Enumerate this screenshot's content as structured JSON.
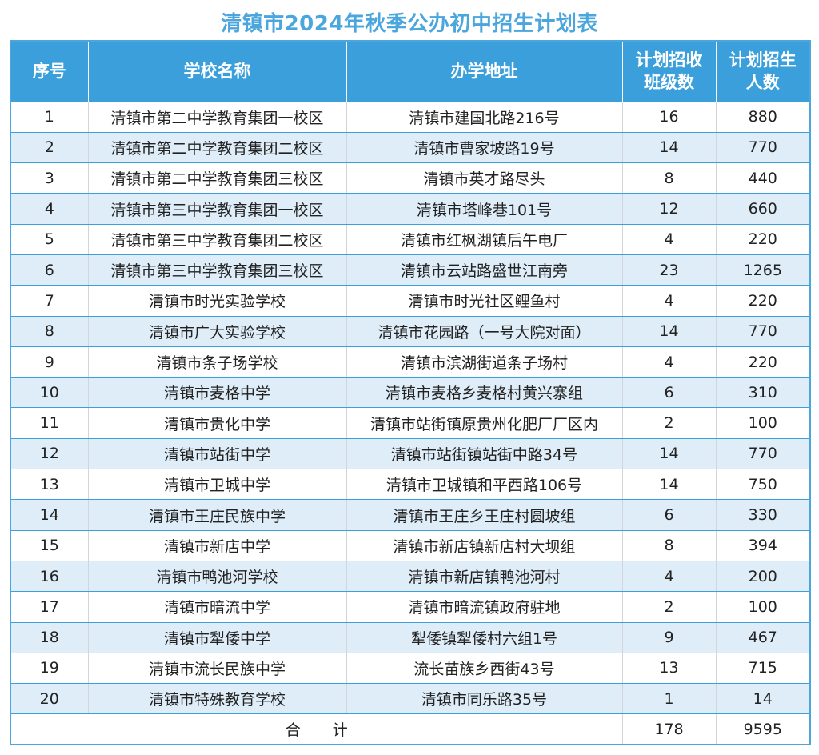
{
  "title": "清镇市2024年秋季公办初中招生计划表",
  "headers": {
    "index": "序号",
    "school": "学校名称",
    "address": "办学地址",
    "classes_line1": "计划招收",
    "classes_line2": "班级数",
    "students_line1": "计划招生",
    "students_line2": "人数"
  },
  "rows": [
    {
      "index": "1",
      "school": "清镇市第二中学教育集团一校区",
      "address": "清镇市建国北路216号",
      "classes": "16",
      "students": "880"
    },
    {
      "index": "2",
      "school": "清镇市第二中学教育集团二校区",
      "address": "清镇市曹家坡路19号",
      "classes": "14",
      "students": "770"
    },
    {
      "index": "3",
      "school": "清镇市第二中学教育集团三校区",
      "address": "清镇市英才路尽头",
      "classes": "8",
      "students": "440"
    },
    {
      "index": "4",
      "school": "清镇市第三中学教育集团一校区",
      "address": "清镇市塔峰巷101号",
      "classes": "12",
      "students": "660"
    },
    {
      "index": "5",
      "school": "清镇市第三中学教育集团二校区",
      "address": "清镇市红枫湖镇后午电厂",
      "classes": "4",
      "students": "220"
    },
    {
      "index": "6",
      "school": "清镇市第三中学教育集团三校区",
      "address": "清镇市云站路盛世江南旁",
      "classes": "23",
      "students": "1265"
    },
    {
      "index": "7",
      "school": "清镇市时光实验学校",
      "address": "清镇市时光社区鲤鱼村",
      "classes": "4",
      "students": "220"
    },
    {
      "index": "8",
      "school": "清镇市广大实验学校",
      "address": "清镇市花园路（一号大院对面）",
      "classes": "14",
      "students": "770"
    },
    {
      "index": "9",
      "school": "清镇市条子场学校",
      "address": "清镇市滨湖街道条子场村",
      "classes": "4",
      "students": "220"
    },
    {
      "index": "10",
      "school": "清镇市麦格中学",
      "address": "清镇市麦格乡麦格村黄兴寨组",
      "classes": "6",
      "students": "310"
    },
    {
      "index": "11",
      "school": "清镇市贵化中学",
      "address": "清镇市站街镇原贵州化肥厂厂区内",
      "classes": "2",
      "students": "100"
    },
    {
      "index": "12",
      "school": "清镇市站街中学",
      "address": "清镇市站街镇站街中路34号",
      "classes": "14",
      "students": "770"
    },
    {
      "index": "13",
      "school": "清镇市卫城中学",
      "address": "清镇市卫城镇和平西路106号",
      "classes": "14",
      "students": "750"
    },
    {
      "index": "14",
      "school": "清镇市王庄民族中学",
      "address": "清镇市王庄乡王庄村圆坡组",
      "classes": "6",
      "students": "330"
    },
    {
      "index": "15",
      "school": "清镇市新店中学",
      "address": "清镇市新店镇新店村大坝组",
      "classes": "8",
      "students": "394"
    },
    {
      "index": "16",
      "school": "清镇市鸭池河学校",
      "address": "清镇市新店镇鸭池河村",
      "classes": "4",
      "students": "200"
    },
    {
      "index": "17",
      "school": "清镇市暗流中学",
      "address": "清镇市暗流镇政府驻地",
      "classes": "2",
      "students": "100"
    },
    {
      "index": "18",
      "school": "清镇市犁倭中学",
      "address": "犁倭镇犁倭村六组1号",
      "classes": "9",
      "students": "467"
    },
    {
      "index": "19",
      "school": "清镇市流长民族中学",
      "address": "流长苗族乡西街43号",
      "classes": "13",
      "students": "715"
    },
    {
      "index": "20",
      "school": "清镇市特殊教育学校",
      "address": "清镇市同乐路35号",
      "classes": "1",
      "students": "14"
    }
  ],
  "total": {
    "label": "合计",
    "classes": "178",
    "students": "9595"
  }
}
